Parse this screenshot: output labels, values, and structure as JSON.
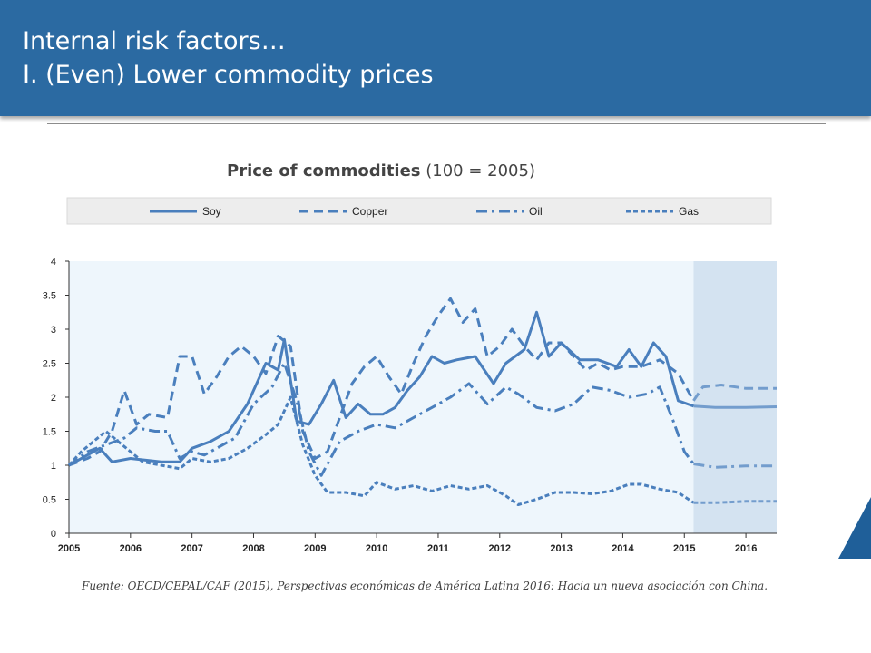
{
  "header": {
    "line1": "Internal risk factors…",
    "line2": "I. (Even) Lower commodity prices"
  },
  "title_bold": "Price of commodities",
  "title_rest": " (100 = 2005)",
  "source": "Fuente: OECD/CEPAL/CAF (2015), Perspectivas económicas de América Latina 2016: Hacia un nueva asociación con China.",
  "colors": {
    "header": "#2b6aa2",
    "series": "#4a7fbd",
    "projection_band": "#d4e3f1",
    "plot_bg": "#eef6fc"
  },
  "chart_data": {
    "type": "line",
    "title": "Price of commodities (100 = 2005)",
    "xlabel": "",
    "ylabel": "",
    "xlim": [
      2005,
      2016.5
    ],
    "ylim": [
      0,
      4
    ],
    "x_ticks": [
      "2005",
      "2006",
      "2007",
      "2008",
      "2009",
      "2010",
      "2011",
      "2012",
      "2013",
      "2014",
      "2015",
      "2016"
    ],
    "y_ticks": [
      "0",
      "0.5",
      "1",
      "1.5",
      "2",
      "2.5",
      "3",
      "3.5",
      "4"
    ],
    "projection_from": 2015.15,
    "legend": "top",
    "series": [
      {
        "name": "Soy",
        "style": "solid",
        "x": [
          2005,
          2005.1,
          2005.3,
          2005.5,
          2005.7,
          2006,
          2006.5,
          2006.8,
          2007,
          2007.3,
          2007.6,
          2007.9,
          2008.2,
          2008.4,
          2008.5,
          2008.7,
          2008.9,
          2009.1,
          2009.3,
          2009.5,
          2009.7,
          2009.9,
          2010.1,
          2010.3,
          2010.5,
          2010.7,
          2010.9,
          2011.1,
          2011.3,
          2011.6,
          2011.9,
          2012.1,
          2012.4,
          2012.6,
          2012.8,
          2013,
          2013.3,
          2013.6,
          2013.9,
          2014.1,
          2014.3,
          2014.5,
          2014.7,
          2014.9,
          2015.15,
          2015.5,
          2016,
          2016.5
        ],
        "y": [
          1.0,
          1.05,
          1.15,
          1.25,
          1.05,
          1.1,
          1.05,
          1.05,
          1.25,
          1.35,
          1.5,
          1.9,
          2.5,
          2.4,
          2.85,
          1.65,
          1.6,
          1.9,
          2.25,
          1.7,
          1.9,
          1.75,
          1.75,
          1.85,
          2.1,
          2.3,
          2.6,
          2.5,
          2.55,
          2.6,
          2.2,
          2.5,
          2.7,
          3.25,
          2.6,
          2.8,
          2.55,
          2.55,
          2.45,
          2.7,
          2.45,
          2.8,
          2.6,
          1.95,
          1.87,
          1.85,
          1.85,
          1.86
        ]
      },
      {
        "name": "Copper",
        "style": "dashed",
        "x": [
          2005,
          2005.3,
          2005.5,
          2005.7,
          2005.9,
          2006.1,
          2006.3,
          2006.6,
          2006.8,
          2007,
          2007.2,
          2007.4,
          2007.6,
          2007.8,
          2008,
          2008.2,
          2008.4,
          2008.6,
          2008.8,
          2009,
          2009.2,
          2009.4,
          2009.6,
          2009.8,
          2010,
          2010.2,
          2010.4,
          2010.6,
          2010.8,
          2011,
          2011.2,
          2011.4,
          2011.6,
          2011.8,
          2012,
          2012.2,
          2012.4,
          2012.6,
          2012.8,
          2013,
          2013.2,
          2013.4,
          2013.6,
          2013.8,
          2014,
          2014.3,
          2014.6,
          2014.9,
          2015.15,
          2015.3,
          2015.6,
          2016,
          2016.5
        ],
        "y": [
          1.0,
          1.1,
          1.2,
          1.5,
          2.1,
          1.6,
          1.75,
          1.7,
          2.6,
          2.6,
          2.05,
          2.3,
          2.6,
          2.75,
          2.6,
          2.35,
          2.9,
          2.75,
          1.5,
          1.1,
          1.2,
          1.7,
          2.2,
          2.45,
          2.6,
          2.3,
          2.05,
          2.5,
          2.9,
          3.2,
          3.45,
          3.1,
          3.3,
          2.6,
          2.75,
          3.0,
          2.75,
          2.55,
          2.8,
          2.8,
          2.6,
          2.4,
          2.5,
          2.4,
          2.45,
          2.45,
          2.55,
          2.35,
          1.95,
          2.15,
          2.18,
          2.13,
          2.13
        ]
      },
      {
        "name": "Oil",
        "style": "dashdot",
        "x": [
          2005,
          2005.3,
          2005.6,
          2005.9,
          2006.1,
          2006.4,
          2006.6,
          2006.8,
          2007,
          2007.2,
          2007.4,
          2007.7,
          2008,
          2008.3,
          2008.5,
          2008.7,
          2008.9,
          2009.1,
          2009.4,
          2009.7,
          2010,
          2010.3,
          2010.6,
          2010.9,
          2011.2,
          2011.5,
          2011.8,
          2012.1,
          2012.3,
          2012.6,
          2012.9,
          2013.2,
          2013.5,
          2013.8,
          2014.1,
          2014.4,
          2014.6,
          2014.8,
          2015,
          2015.15,
          2015.5,
          2016,
          2016.5
        ],
        "y": [
          1.0,
          1.2,
          1.3,
          1.4,
          1.55,
          1.5,
          1.5,
          1.1,
          1.2,
          1.15,
          1.25,
          1.4,
          1.9,
          2.15,
          2.5,
          1.95,
          1.2,
          0.85,
          1.35,
          1.5,
          1.6,
          1.55,
          1.7,
          1.85,
          2.0,
          2.2,
          1.9,
          2.15,
          2.05,
          1.85,
          1.8,
          1.9,
          2.15,
          2.1,
          2.0,
          2.05,
          2.15,
          1.7,
          1.2,
          1.02,
          0.97,
          0.99,
          0.99
        ]
      },
      {
        "name": "Gas",
        "style": "dotted",
        "x": [
          2005,
          2005.2,
          2005.4,
          2005.6,
          2005.8,
          2006,
          2006.2,
          2006.5,
          2006.8,
          2007,
          2007.3,
          2007.6,
          2007.9,
          2008.2,
          2008.4,
          2008.6,
          2008.8,
          2009,
          2009.2,
          2009.5,
          2009.8,
          2010,
          2010.3,
          2010.6,
          2010.9,
          2011.2,
          2011.5,
          2011.8,
          2012.1,
          2012.3,
          2012.6,
          2012.9,
          2013.2,
          2013.5,
          2013.8,
          2014.1,
          2014.3,
          2014.6,
          2014.9,
          2015.15,
          2015.5,
          2016,
          2016.5
        ],
        "y": [
          1.0,
          1.2,
          1.35,
          1.5,
          1.35,
          1.2,
          1.05,
          1.0,
          0.95,
          1.1,
          1.05,
          1.1,
          1.25,
          1.45,
          1.6,
          2.0,
          1.3,
          0.85,
          0.6,
          0.6,
          0.55,
          0.75,
          0.65,
          0.7,
          0.62,
          0.7,
          0.65,
          0.7,
          0.55,
          0.42,
          0.5,
          0.6,
          0.6,
          0.58,
          0.62,
          0.72,
          0.72,
          0.65,
          0.6,
          0.45,
          0.45,
          0.47,
          0.47
        ]
      }
    ]
  }
}
